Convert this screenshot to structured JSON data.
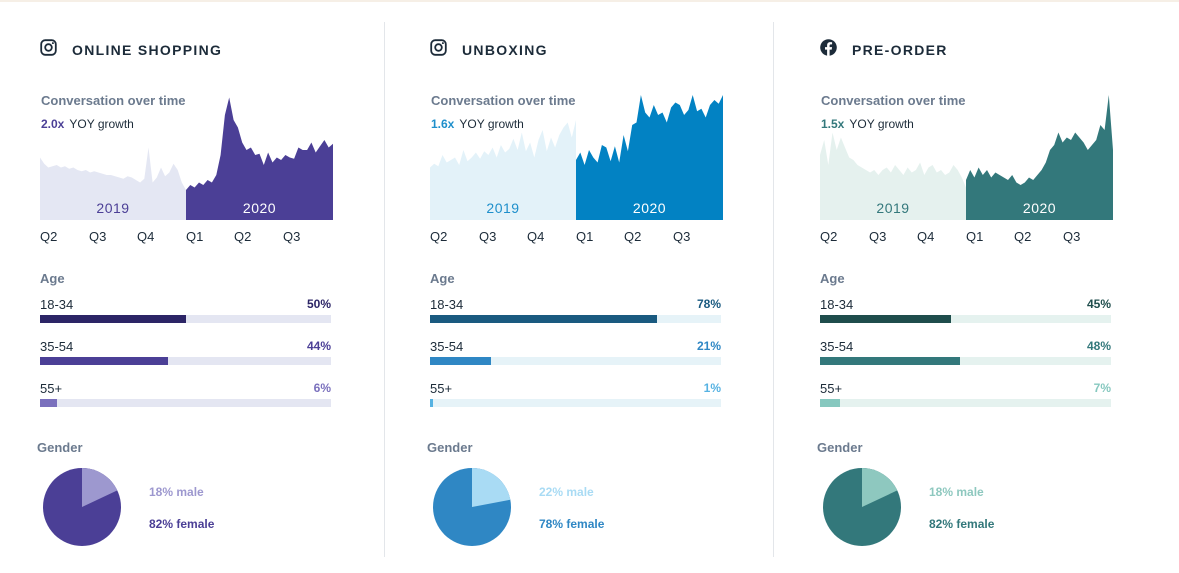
{
  "panels": [
    {
      "title": "ONLINE SHOPPING",
      "platform_icon": "instagram-icon",
      "conversation_label": "Conversation over time",
      "yoy_value": "2.0x",
      "yoy_label": "YOY growth",
      "colors": {
        "light_area": "#e4e7f3",
        "dark_area": "#4b3f96",
        "label_2019": "#4b3f96",
        "label_2020": "#ffffff",
        "yoy_value": "#4b3f96",
        "track": "#e4e6f2",
        "bars": [
          "#2c2566",
          "#4b3f96",
          "#7a70bd"
        ],
        "pcts": [
          "#2c2566",
          "#4b3f96",
          "#7a70bd"
        ],
        "pie_main": "#4b3f96",
        "pie_minor": "#9d98cf",
        "male_text": "#9d98cf",
        "female_text": "#4b3f96"
      },
      "chart_data": {
        "type": "area",
        "title": "Conversation over time",
        "x_ticks": [
          "Q2",
          "Q3",
          "Q4",
          "Q1",
          "Q2",
          "Q3"
        ],
        "ylim": [
          0,
          100
        ],
        "series": [
          {
            "name": "2019",
            "values": [
              50,
              45,
              42,
              43,
              44,
              42,
              43,
              41,
              42,
              40,
              39,
              40,
              38,
              39,
              38,
              37,
              36,
              36,
              35,
              34,
              33,
              35,
              34,
              32,
              30,
              33,
              58,
              30,
              34,
              42,
              35,
              38,
              45,
              40,
              30,
              24
            ]
          },
          {
            "name": "2020",
            "values": [
              24,
              28,
              26,
              30,
              28,
              32,
              30,
              36,
              52,
              84,
              98,
              80,
              74,
              62,
              56,
              58,
              52,
              53,
              44,
              54,
              46,
              50,
              48,
              52,
              50,
              49,
              58,
              56,
              56,
              62,
              54,
              59,
              64,
              58,
              61
            ]
          }
        ]
      },
      "age_label": "Age",
      "age": [
        {
          "label": "18-34",
          "value": 50,
          "pct_text": "50%"
        },
        {
          "label": "35-54",
          "value": 44,
          "pct_text": "44%"
        },
        {
          "label": "55+",
          "value": 6,
          "pct_text": "6%"
        }
      ],
      "gender_label": "Gender",
      "gender": {
        "male": 18,
        "female": 82,
        "male_text": "18% male",
        "female_text": "82% female"
      }
    },
    {
      "title": "UNBOXING",
      "platform_icon": "instagram-icon",
      "conversation_label": "Conversation over time",
      "yoy_value": "1.6x",
      "yoy_label": "YOY growth",
      "colors": {
        "light_area": "#e3f2f9",
        "dark_area": "#0282c3",
        "label_2019": "#1e8fcb",
        "label_2020": "#ffffff",
        "yoy_value": "#1e8fcb",
        "track": "#e6f3f8",
        "bars": [
          "#1a5a80",
          "#2f87c4",
          "#56b2e2"
        ],
        "pcts": [
          "#1a5a80",
          "#2f87c4",
          "#56b2e2"
        ],
        "pie_main": "#2f87c4",
        "pie_minor": "#a9dbf4",
        "male_text": "#a9dbf4",
        "female_text": "#2f87c4"
      },
      "chart_data": {
        "type": "area",
        "title": "Conversation over time",
        "x_ticks": [
          "Q2",
          "Q3",
          "Q4",
          "Q1",
          "Q2",
          "Q3"
        ],
        "ylim": [
          0,
          100
        ],
        "series": [
          {
            "name": "2019",
            "values": [
              42,
              45,
              43,
              52,
              46,
              48,
              50,
              44,
              56,
              47,
              50,
              54,
              49,
              55,
              52,
              58,
              50,
              60,
              54,
              57,
              65,
              56,
              70,
              55,
              62,
              50,
              64,
              72,
              55,
              66,
              58,
              68,
              74,
              78,
              66,
              80
            ]
          },
          {
            "name": "2020",
            "values": [
              48,
              54,
              44,
              56,
              50,
              46,
              60,
              58,
              47,
              59,
              46,
              68,
              55,
              76,
              78,
              100,
              86,
              82,
              92,
              84,
              86,
              78,
              90,
              94,
              92,
              84,
              88,
              100,
              87,
              89,
              82,
              92,
              96,
              93,
              100
            ]
          }
        ]
      },
      "age_label": "Age",
      "age": [
        {
          "label": "18-34",
          "value": 78,
          "pct_text": "78%"
        },
        {
          "label": "35-54",
          "value": 21,
          "pct_text": "21%"
        },
        {
          "label": "55+",
          "value": 1,
          "pct_text": "1%"
        }
      ],
      "gender_label": "Gender",
      "gender": {
        "male": 22,
        "female": 78,
        "male_text": "22% male",
        "female_text": "78% female"
      }
    },
    {
      "title": "PRE-ORDER",
      "platform_icon": "facebook-icon",
      "conversation_label": "Conversation over time",
      "yoy_value": "1.5x",
      "yoy_label": "YOY growth",
      "colors": {
        "light_area": "#e5f1ee",
        "dark_area": "#33787b",
        "label_2019": "#33787b",
        "label_2020": "#ffffff",
        "yoy_value": "#33787b",
        "track": "#e5f2ef",
        "bars": [
          "#1f4d4c",
          "#33787b",
          "#86c8bf"
        ],
        "pcts": [
          "#1f4d4c",
          "#33787b",
          "#86c8bf"
        ],
        "pie_main": "#33787b",
        "pie_minor": "#8ec8bf",
        "male_text": "#8ec8bf",
        "female_text": "#33787b"
      },
      "chart_data": {
        "type": "area",
        "title": "Conversation over time",
        "x_ticks": [
          "Q2",
          "Q3",
          "Q4",
          "Q1",
          "Q2",
          "Q3"
        ],
        "ylim": [
          0,
          100
        ],
        "series": [
          {
            "name": "2019",
            "values": [
              52,
              64,
              44,
              70,
              56,
              66,
              58,
              50,
              48,
              44,
              42,
              40,
              38,
              40,
              36,
              40,
              42,
              38,
              44,
              40,
              36,
              42,
              38,
              40,
              46,
              36,
              42,
              44,
              38,
              40,
              36,
              38,
              44,
              40,
              34,
              26
            ]
          },
          {
            "name": "2020",
            "values": [
              32,
              40,
              34,
              42,
              36,
              40,
              34,
              38,
              36,
              34,
              32,
              36,
              30,
              28,
              30,
              34,
              32,
              36,
              40,
              46,
              56,
              60,
              70,
              62,
              66,
              64,
              70,
              66,
              62,
              56,
              60,
              64,
              76,
              72,
              100,
              56
            ]
          }
        ]
      },
      "age_label": "Age",
      "age": [
        {
          "label": "18-34",
          "value": 45,
          "pct_text": "45%"
        },
        {
          "label": "35-54",
          "value": 48,
          "pct_text": "48%"
        },
        {
          "label": "55+",
          "value": 7,
          "pct_text": "7%"
        }
      ],
      "gender_label": "Gender",
      "gender": {
        "male": 18,
        "female": 82,
        "male_text": "18% male",
        "female_text": "82% female"
      }
    }
  ]
}
